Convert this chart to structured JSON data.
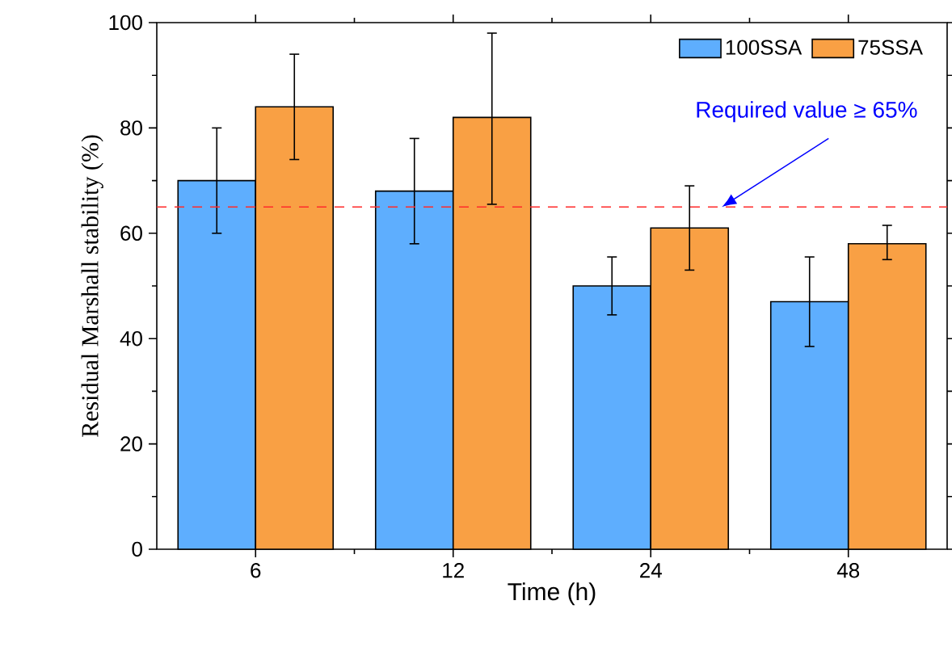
{
  "chart_data": {
    "type": "bar",
    "xlabel": "Time (h)",
    "ylabel": "Residual Marshall stability (%)",
    "categories": [
      "6",
      "12",
      "24",
      "48"
    ],
    "series": [
      {
        "name": "100SSA",
        "color": "#5eaefe",
        "values": [
          70,
          68,
          50,
          47
        ],
        "errors": [
          10,
          [
            58,
            78
          ],
          [
            44.5,
            55.5
          ],
          [
            38.5,
            55.5
          ]
        ]
      },
      {
        "name": "75SSA",
        "color": "#f9a044",
        "values": [
          84,
          82,
          61,
          58
        ],
        "errors": [
          10,
          [
            65.5,
            98
          ],
          [
            53,
            69
          ],
          [
            55,
            61.5
          ]
        ]
      }
    ],
    "ylim": [
      0,
      100
    ],
    "yticks": [
      0,
      20,
      40,
      60,
      80,
      100
    ],
    "ref_lines": [
      {
        "axis": "y",
        "value": 65,
        "label": "Required value ≥ 65%",
        "color": "#ff2a2a",
        "line_style": "dashed"
      }
    ],
    "legend": "top right"
  }
}
